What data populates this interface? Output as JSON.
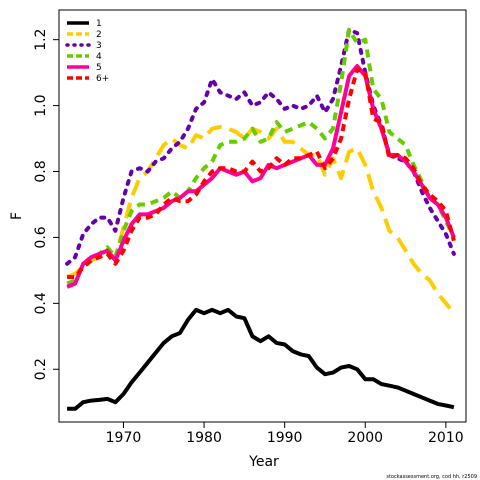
{
  "chart_data": {
    "type": "line",
    "xlabel": "Year",
    "ylabel": "F",
    "xlim": [
      1962,
      2012.5
    ],
    "ylim": [
      0.04,
      1.29
    ],
    "x_ticks": [
      "1970",
      "1980",
      "1990",
      "2000",
      "2010"
    ],
    "y_ticks": [
      "0.2",
      "0.4",
      "0.6",
      "0.8",
      "1.0",
      "1.2"
    ],
    "legend_position": "top-left",
    "grid": false,
    "series": [
      {
        "name": "1",
        "color": "#000000",
        "dash": "solid",
        "x": [
          1963,
          1964,
          1965,
          1966,
          1967,
          1968,
          1969,
          1970,
          1971,
          1972,
          1973,
          1974,
          1975,
          1976,
          1977,
          1978,
          1979,
          1980,
          1981,
          1982,
          1983,
          1984,
          1985,
          1986,
          1987,
          1988,
          1989,
          1990,
          1991,
          1992,
          1993,
          1994,
          1995,
          1996,
          1997,
          1998,
          1999,
          2000,
          2001,
          2002,
          2003,
          2004,
          2005,
          2006,
          2007,
          2008,
          2009,
          2010,
          2011
        ],
        "y": [
          0.08,
          0.08,
          0.1,
          0.105,
          0.107,
          0.11,
          0.1,
          0.125,
          0.16,
          0.19,
          0.22,
          0.25,
          0.28,
          0.3,
          0.31,
          0.35,
          0.38,
          0.37,
          0.38,
          0.37,
          0.38,
          0.36,
          0.355,
          0.3,
          0.285,
          0.3,
          0.28,
          0.275,
          0.255,
          0.245,
          0.24,
          0.205,
          0.185,
          0.19,
          0.205,
          0.21,
          0.2,
          0.17,
          0.17,
          0.155,
          0.15,
          0.145,
          0.135,
          0.125,
          0.115,
          0.105,
          0.095,
          0.09,
          0.085
        ]
      },
      {
        "name": "2",
        "color": "#FFCC00",
        "dash": "long",
        "x": [
          1963,
          1964,
          1965,
          1966,
          1967,
          1968,
          1969,
          1970,
          1971,
          1972,
          1973,
          1974,
          1975,
          1976,
          1977,
          1978,
          1979,
          1980,
          1981,
          1982,
          1983,
          1984,
          1985,
          1986,
          1987,
          1988,
          1989,
          1990,
          1991,
          1992,
          1993,
          1994,
          1995,
          1996,
          1997,
          1998,
          1999,
          2000,
          2001,
          2002,
          2003,
          2004,
          2005,
          2006,
          2007,
          2008,
          2009,
          2010,
          2011
        ],
        "y": [
          0.48,
          0.49,
          0.51,
          0.53,
          0.54,
          0.55,
          0.54,
          0.63,
          0.72,
          0.78,
          0.8,
          0.84,
          0.88,
          0.9,
          0.88,
          0.87,
          0.91,
          0.9,
          0.93,
          0.935,
          0.93,
          0.92,
          0.9,
          0.93,
          0.92,
          0.9,
          0.93,
          0.89,
          0.89,
          0.87,
          0.85,
          0.85,
          0.79,
          0.84,
          0.78,
          0.86,
          0.87,
          0.82,
          0.74,
          0.69,
          0.62,
          0.6,
          0.56,
          0.52,
          0.49,
          0.47,
          0.43,
          0.4,
          0.37
        ]
      },
      {
        "name": "3",
        "color": "#6600AA",
        "dash": "dotted",
        "x": [
          1963,
          1964,
          1965,
          1966,
          1967,
          1968,
          1969,
          1970,
          1971,
          1972,
          1973,
          1974,
          1975,
          1976,
          1977,
          1978,
          1979,
          1980,
          1981,
          1982,
          1983,
          1984,
          1985,
          1986,
          1987,
          1988,
          1989,
          1990,
          1991,
          1992,
          1993,
          1994,
          1995,
          1996,
          1997,
          1998,
          1999,
          2000,
          2001,
          2002,
          2003,
          2004,
          2005,
          2006,
          2007,
          2008,
          2009,
          2010,
          2011
        ],
        "y": [
          0.52,
          0.54,
          0.61,
          0.64,
          0.66,
          0.66,
          0.62,
          0.72,
          0.8,
          0.81,
          0.8,
          0.83,
          0.84,
          0.87,
          0.89,
          0.93,
          0.99,
          1.01,
          1.08,
          1.04,
          1.03,
          1.02,
          1.04,
          1.0,
          1.01,
          1.04,
          1.02,
          0.99,
          1.0,
          0.99,
          1.0,
          1.03,
          0.98,
          1.02,
          1.12,
          1.23,
          1.22,
          1.1,
          1.0,
          0.94,
          0.85,
          0.84,
          0.83,
          0.8,
          0.74,
          0.69,
          0.65,
          0.61,
          0.55
        ]
      },
      {
        "name": "4",
        "color": "#66CC00",
        "dash": "dashed",
        "x": [
          1963,
          1964,
          1965,
          1966,
          1967,
          1968,
          1969,
          1970,
          1971,
          1972,
          1973,
          1974,
          1975,
          1976,
          1977,
          1978,
          1979,
          1980,
          1981,
          1982,
          1983,
          1984,
          1985,
          1986,
          1987,
          1988,
          1989,
          1990,
          1991,
          1992,
          1993,
          1994,
          1995,
          1996,
          1997,
          1998,
          1999,
          2000,
          2001,
          2002,
          2003,
          2004,
          2005,
          2006,
          2007,
          2008,
          2009,
          2010,
          2011
        ],
        "y": [
          0.46,
          0.47,
          0.52,
          0.53,
          0.55,
          0.57,
          0.54,
          0.62,
          0.68,
          0.7,
          0.7,
          0.71,
          0.72,
          0.74,
          0.72,
          0.74,
          0.78,
          0.81,
          0.83,
          0.88,
          0.89,
          0.89,
          0.9,
          0.93,
          0.89,
          0.9,
          0.95,
          0.92,
          0.93,
          0.94,
          0.95,
          0.93,
          0.9,
          0.93,
          1.07,
          1.23,
          1.19,
          1.2,
          1.05,
          1.02,
          0.92,
          0.9,
          0.88,
          0.82,
          0.77,
          0.72,
          0.7,
          0.65,
          0.6
        ]
      },
      {
        "name": "5",
        "color": "#FF0099",
        "dash": "solid",
        "x": [
          1963,
          1964,
          1965,
          1966,
          1967,
          1968,
          1969,
          1970,
          1971,
          1972,
          1973,
          1974,
          1975,
          1976,
          1977,
          1978,
          1979,
          1980,
          1981,
          1982,
          1983,
          1984,
          1985,
          1986,
          1987,
          1988,
          1989,
          1990,
          1991,
          1992,
          1993,
          1994,
          1995,
          1996,
          1997,
          1998,
          1999,
          2000,
          2001,
          2002,
          2003,
          2004,
          2005,
          2006,
          2007,
          2008,
          2009,
          2010,
          2011
        ],
        "y": [
          0.45,
          0.46,
          0.52,
          0.54,
          0.55,
          0.56,
          0.53,
          0.59,
          0.64,
          0.67,
          0.67,
          0.68,
          0.69,
          0.71,
          0.72,
          0.74,
          0.74,
          0.76,
          0.78,
          0.81,
          0.8,
          0.79,
          0.8,
          0.77,
          0.78,
          0.82,
          0.81,
          0.82,
          0.83,
          0.84,
          0.85,
          0.82,
          0.82,
          0.87,
          0.98,
          1.09,
          1.12,
          1.09,
          0.99,
          0.93,
          0.85,
          0.85,
          0.83,
          0.8,
          0.76,
          0.72,
          0.7,
          0.66,
          0.6
        ]
      },
      {
        "name": "6+",
        "color": "#FF0000",
        "dash": "short",
        "x": [
          1963,
          1964,
          1965,
          1966,
          1967,
          1968,
          1969,
          1970,
          1971,
          1972,
          1973,
          1974,
          1975,
          1976,
          1977,
          1978,
          1979,
          1980,
          1981,
          1982,
          1983,
          1984,
          1985,
          1986,
          1987,
          1988,
          1989,
          1990,
          1991,
          1992,
          1993,
          1994,
          1995,
          1996,
          1997,
          1998,
          1999,
          2000,
          2001,
          2002,
          2003,
          2004,
          2005,
          2006,
          2007,
          2008,
          2009,
          2010,
          2011
        ],
        "y": [
          0.48,
          0.48,
          0.51,
          0.53,
          0.54,
          0.55,
          0.52,
          0.56,
          0.62,
          0.66,
          0.66,
          0.67,
          0.7,
          0.72,
          0.71,
          0.71,
          0.73,
          0.77,
          0.8,
          0.81,
          0.81,
          0.8,
          0.8,
          0.83,
          0.8,
          0.81,
          0.84,
          0.82,
          0.84,
          0.84,
          0.85,
          0.86,
          0.81,
          0.84,
          0.9,
          1.02,
          1.11,
          1.1,
          0.96,
          0.95,
          0.84,
          0.85,
          0.84,
          0.81,
          0.76,
          0.73,
          0.71,
          0.68,
          0.59
        ]
      }
    ]
  },
  "credit": "stockassessment.org, cod hh, r2509"
}
